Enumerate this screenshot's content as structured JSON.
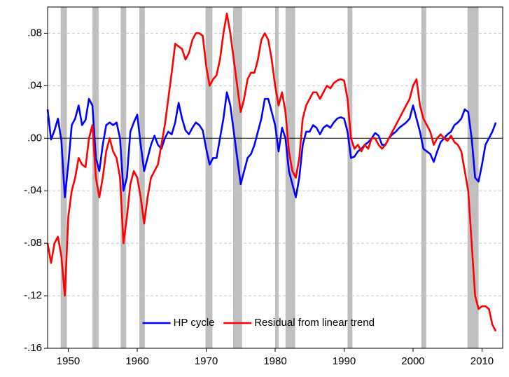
{
  "chart_data": {
    "type": "line",
    "x": [
      1947,
      1947.5,
      1948,
      1948.5,
      1949,
      1949.5,
      1950,
      1950.5,
      1951,
      1951.5,
      1952,
      1952.5,
      1953,
      1953.5,
      1954,
      1954.5,
      1955,
      1955.5,
      1956,
      1956.5,
      1957,
      1957.5,
      1958,
      1958.5,
      1959,
      1959.5,
      1960,
      1960.5,
      1961,
      1961.5,
      1962,
      1962.5,
      1963,
      1963.5,
      1964,
      1964.5,
      1965,
      1965.5,
      1966,
      1966.5,
      1967,
      1967.5,
      1968,
      1968.5,
      1969,
      1969.5,
      1970,
      1970.5,
      1971,
      1971.5,
      1972,
      1972.5,
      1973,
      1973.5,
      1974,
      1974.5,
      1975,
      1975.5,
      1976,
      1976.5,
      1977,
      1977.5,
      1978,
      1978.5,
      1979,
      1979.5,
      1980,
      1980.5,
      1981,
      1981.5,
      1982,
      1982.5,
      1983,
      1983.5,
      1984,
      1984.5,
      1985,
      1985.5,
      1986,
      1986.5,
      1987,
      1987.5,
      1988,
      1988.5,
      1989,
      1989.5,
      1990,
      1990.5,
      1991,
      1991.5,
      1992,
      1992.5,
      1993,
      1993.5,
      1994,
      1994.5,
      1995,
      1995.5,
      1996,
      1996.5,
      1997,
      1997.5,
      1998,
      1998.5,
      1999,
      1999.5,
      2000,
      2000.5,
      2001,
      2001.5,
      2002,
      2002.5,
      2003,
      2003.5,
      2004,
      2004.5,
      2005,
      2005.5,
      2006,
      2006.5,
      2007,
      2007.5,
      2008,
      2008.5,
      2009,
      2009.5,
      2010,
      2010.5,
      2011,
      2011.5,
      2012
    ],
    "series": [
      {
        "name": "HP cycle",
        "color": "#0000ff",
        "values": [
          0.022,
          -0.001,
          0.006,
          0.015,
          -0.002,
          -0.045,
          -0.02,
          0.01,
          0.015,
          0.025,
          0.01,
          0.014,
          0.03,
          0.025,
          -0.015,
          -0.025,
          -0.005,
          0.01,
          0.012,
          0.01,
          0.012,
          0.0,
          -0.04,
          -0.03,
          0.005,
          0.012,
          0.018,
          -0.005,
          -0.025,
          -0.015,
          -0.005,
          0.002,
          -0.005,
          -0.008,
          0.0,
          0.005,
          0.003,
          0.012,
          0.027,
          0.015,
          0.006,
          0.003,
          0.008,
          0.012,
          0.01,
          0.006,
          -0.008,
          -0.02,
          -0.015,
          -0.015,
          0.0,
          0.015,
          0.035,
          0.025,
          0.005,
          -0.015,
          -0.035,
          -0.025,
          -0.015,
          -0.012,
          -0.005,
          0.005,
          0.015,
          0.03,
          0.03,
          0.02,
          0.01,
          -0.01,
          0.008,
          0.0,
          -0.025,
          -0.035,
          -0.045,
          -0.03,
          -0.005,
          0.005,
          0.005,
          0.01,
          0.008,
          0.003,
          0.008,
          0.01,
          0.008,
          0.012,
          0.015,
          0.016,
          0.015,
          0.005,
          -0.015,
          -0.014,
          -0.01,
          -0.008,
          -0.005,
          -0.003,
          0.0,
          0.004,
          0.002,
          -0.005,
          -0.005,
          0.0,
          0.003,
          0.005,
          0.008,
          0.01,
          0.012,
          0.015,
          0.025,
          0.015,
          0.005,
          -0.008,
          -0.01,
          -0.012,
          -0.018,
          -0.01,
          -0.003,
          0.0,
          0.003,
          0.005,
          0.01,
          0.012,
          0.015,
          0.022,
          0.02,
          0.0,
          -0.03,
          -0.033,
          -0.02,
          -0.005,
          0.0,
          0.005,
          0.012
        ]
      },
      {
        "name": "Residual from linear trend",
        "color": "#ff0000",
        "values": [
          -0.08,
          -0.095,
          -0.08,
          -0.075,
          -0.09,
          -0.12,
          -0.06,
          -0.04,
          -0.03,
          -0.015,
          -0.02,
          -0.022,
          0.0,
          0.01,
          -0.03,
          -0.045,
          -0.03,
          -0.01,
          0.0,
          -0.01,
          -0.015,
          -0.03,
          -0.08,
          -0.06,
          -0.035,
          -0.025,
          -0.03,
          -0.045,
          -0.065,
          -0.045,
          -0.03,
          -0.025,
          -0.02,
          -0.005,
          0.01,
          0.03,
          0.05,
          0.072,
          0.07,
          0.068,
          0.06,
          0.065,
          0.075,
          0.08,
          0.08,
          0.078,
          0.055,
          0.04,
          0.045,
          0.048,
          0.06,
          0.08,
          0.095,
          0.08,
          0.06,
          0.04,
          0.02,
          0.03,
          0.045,
          0.05,
          0.05,
          0.06,
          0.075,
          0.08,
          0.075,
          0.06,
          0.04,
          0.025,
          0.035,
          0.02,
          -0.01,
          -0.025,
          -0.03,
          -0.015,
          0.015,
          0.025,
          0.03,
          0.035,
          0.035,
          0.03,
          0.035,
          0.04,
          0.038,
          0.042,
          0.044,
          0.045,
          0.044,
          0.03,
          0.0,
          -0.008,
          -0.005,
          -0.01,
          -0.005,
          -0.008,
          0.0,
          0.0,
          -0.005,
          -0.008,
          -0.005,
          0.0,
          0.005,
          0.01,
          0.015,
          0.02,
          0.025,
          0.03,
          0.04,
          0.045,
          0.025,
          0.015,
          0.01,
          0.005,
          -0.005,
          0.0,
          0.003,
          0.0,
          -0.002,
          0.002,
          -0.003,
          -0.005,
          -0.01,
          -0.025,
          -0.04,
          -0.08,
          -0.12,
          -0.13,
          -0.128,
          -0.128,
          -0.13,
          -0.142,
          -0.147
        ]
      }
    ],
    "shaded_periods": [
      [
        1948.9,
        1949.8
      ],
      [
        1953.5,
        1954.4
      ],
      [
        1957.6,
        1958.4
      ],
      [
        1960.3,
        1961.1
      ],
      [
        1969.9,
        1970.9
      ],
      [
        1973.9,
        1975.2
      ],
      [
        1980.0,
        1980.5
      ],
      [
        1981.5,
        1982.9
      ],
      [
        1990.5,
        1991.2
      ],
      [
        2001.2,
        2001.9
      ],
      [
        2007.9,
        2009.5
      ]
    ],
    "shade_color": "#bfbfbf",
    "xlim": [
      1947,
      2013
    ],
    "xticks": [
      1950,
      1960,
      1970,
      1980,
      1990,
      2000,
      2010
    ],
    "ylim": [
      -0.16,
      0.1
    ],
    "yticks": [
      {
        "value": 0.08,
        "label": ".08"
      },
      {
        "value": 0.04,
        "label": ".04"
      },
      {
        "value": 0,
        "label": ".00"
      },
      {
        "value": -0.04,
        "label": "-.04"
      },
      {
        "value": -0.08,
        "label": "-.08"
      },
      {
        "value": -0.12,
        "label": "-.12"
      },
      {
        "value": -0.16,
        "label": "-.16"
      }
    ],
    "grid": true,
    "legend": "lower center"
  }
}
